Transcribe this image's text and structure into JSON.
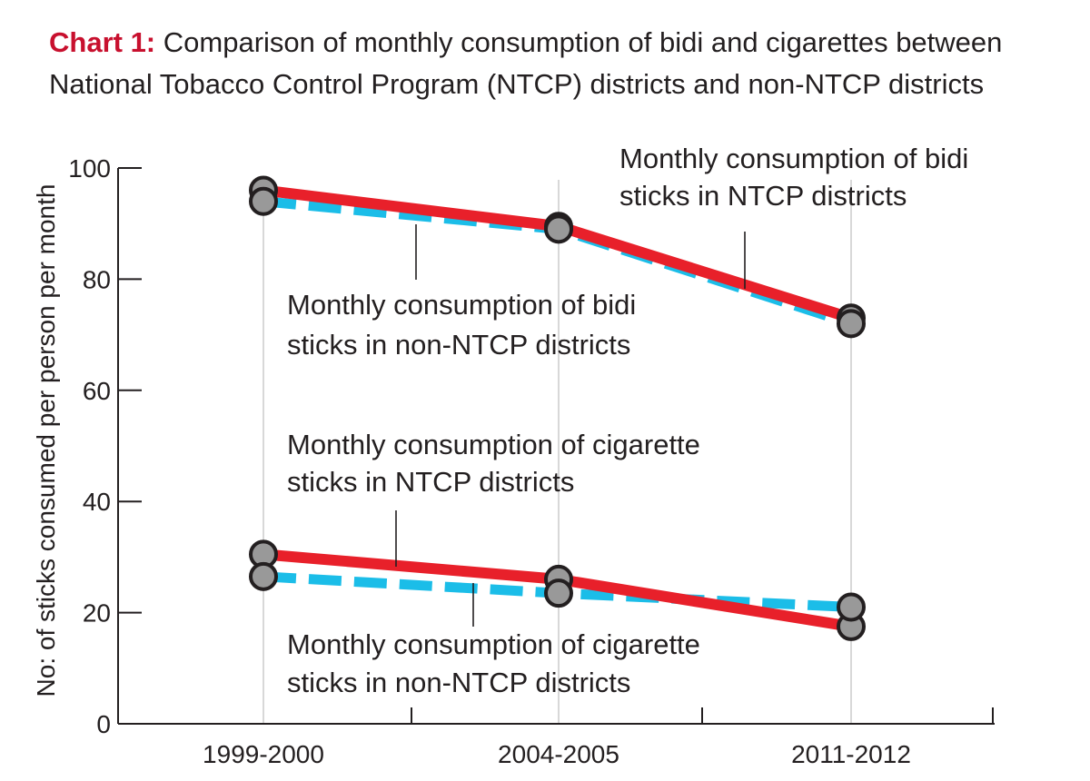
{
  "title": {
    "label": "Chart 1:",
    "text": "Comparison of monthly consumption of bidi and cigarettes between National Tobacco Control  Program (NTCP) districts and non-NTCP districts"
  },
  "colors": {
    "ntcp": "#e8202a",
    "non_ntcp": "#1bbde8",
    "marker_fill": "#999999",
    "marker_stroke": "#231f20",
    "title_accent": "#c8102e"
  },
  "chart_data": {
    "type": "line",
    "categories": [
      "1999-2000",
      "2004-2005",
      "2011-2012"
    ],
    "ylabel": "No: of sticks consumed per person per month",
    "ylim": [
      0,
      100
    ],
    "yticks": [
      "0",
      "20",
      "40",
      "60",
      "80",
      "100"
    ],
    "grid": "vertical lines at categories",
    "series": [
      {
        "name": "Monthly consumption of bidi sticks in NTCP districts",
        "lines": [
          "Monthly consumption of bidi",
          "sticks in NTCP districts"
        ],
        "style": "solid",
        "values": [
          96,
          89.5,
          73
        ]
      },
      {
        "name": "Monthly consumption of bidi sticks in non-NTCP districts",
        "lines": [
          "Monthly consumption of bidi",
          "sticks in non-NTCP districts"
        ],
        "style": "dashed",
        "values": [
          94,
          89,
          72
        ]
      },
      {
        "name": "Monthly consumption of cigarette sticks in NTCP districts",
        "lines": [
          "Monthly consumption of cigarette",
          "sticks in NTCP districts"
        ],
        "style": "solid",
        "values": [
          30.5,
          26,
          17.5
        ]
      },
      {
        "name": "Monthly consumption of cigarette sticks in non-NTCP districts",
        "lines": [
          "Monthly consumption of cigarette",
          "sticks in non-NTCP districts"
        ],
        "style": "dashed",
        "values": [
          26.5,
          23.5,
          21
        ]
      }
    ]
  }
}
